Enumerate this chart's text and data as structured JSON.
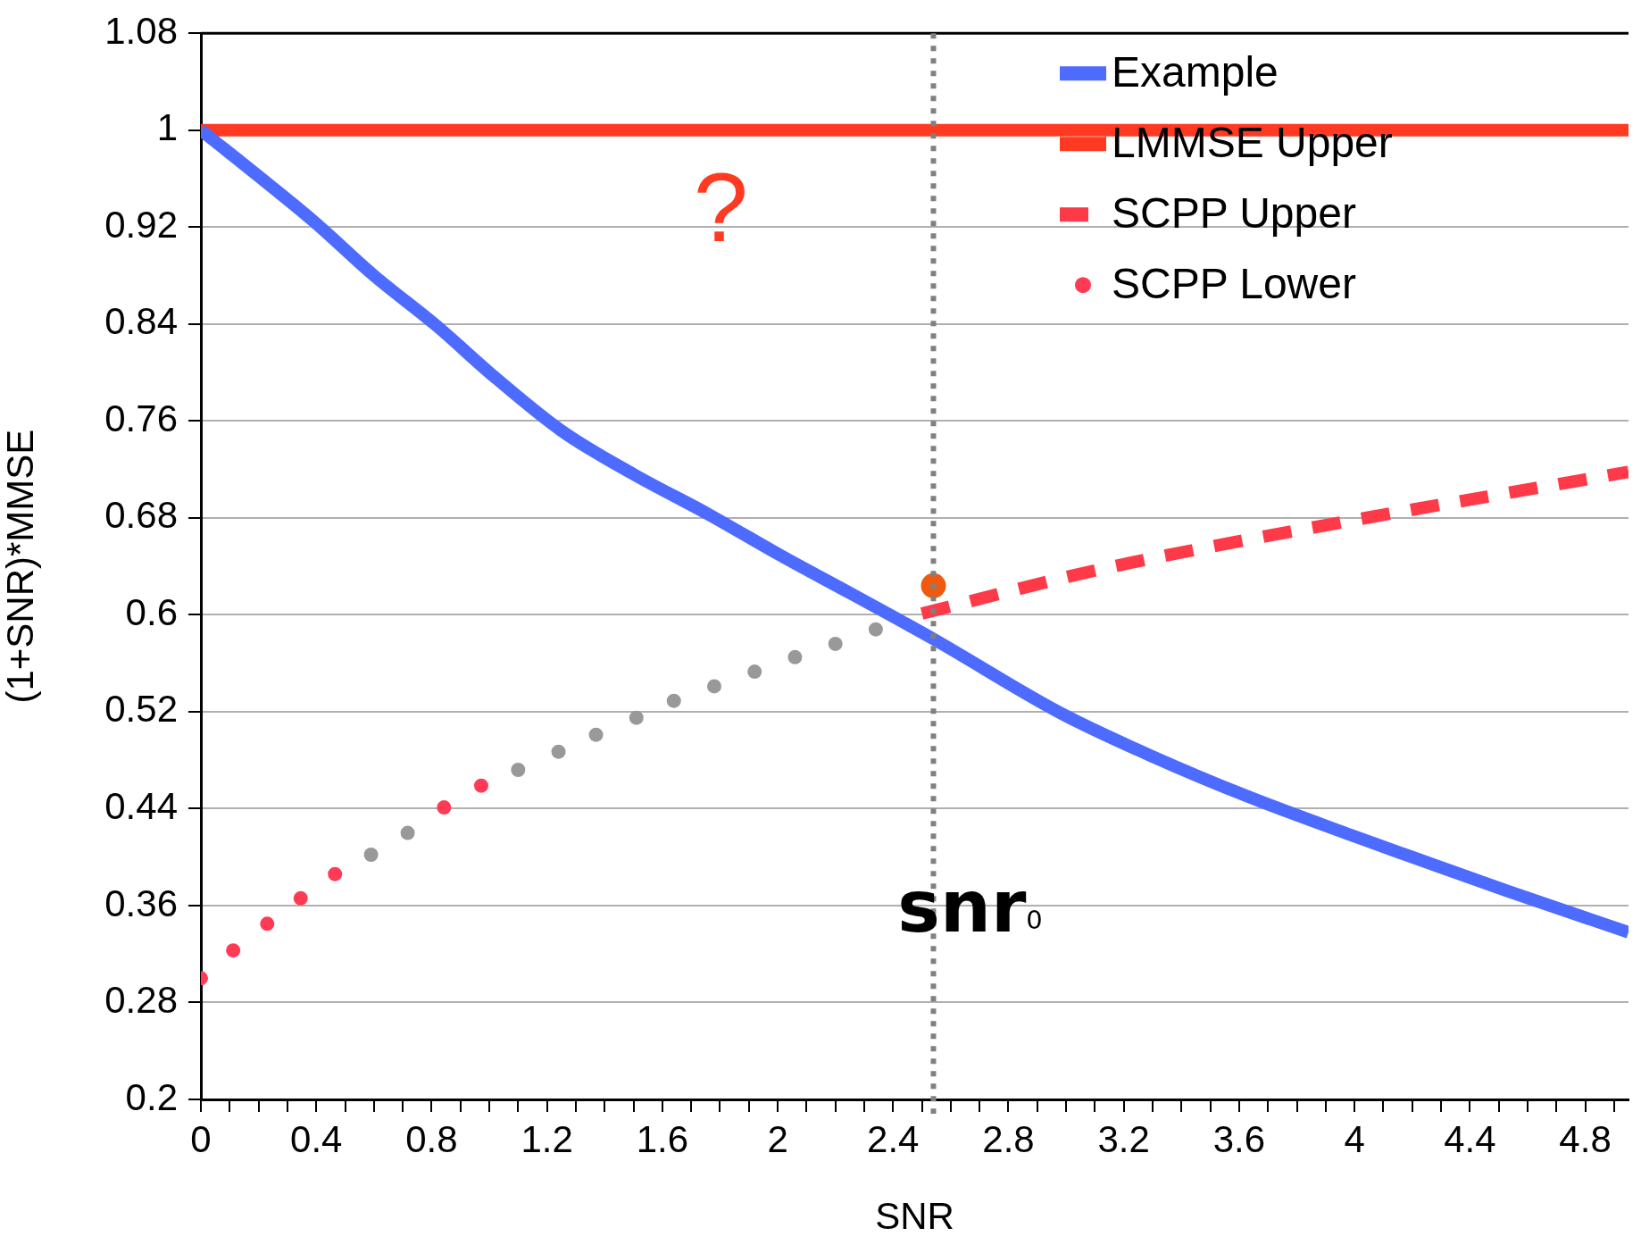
{
  "chart_data": {
    "type": "line",
    "xlabel": "SNR",
    "ylabel": "(1+SNR)*MMSE",
    "xlim": [
      0,
      4.95
    ],
    "ylim": [
      0.2,
      1.08
    ],
    "xticks": [
      0,
      {
        "value": 0.1,
        "label": null
      },
      {
        "value": 0.2,
        "label": null
      },
      {
        "value": 0.3,
        "label": null
      },
      0.4,
      {
        "value": 0.5,
        "label": null
      },
      {
        "value": 0.6,
        "label": null
      },
      {
        "value": 0.7,
        "label": null
      },
      0.8,
      {
        "value": 0.9,
        "label": null
      },
      {
        "value": 1,
        "label": null
      },
      {
        "value": 1.1,
        "label": null
      },
      1.2,
      {
        "value": 1.3,
        "label": null
      },
      {
        "value": 1.4,
        "label": null
      },
      {
        "value": 1.5,
        "label": null
      },
      1.6,
      {
        "value": 1.7,
        "label": null
      },
      {
        "value": 1.8,
        "label": null
      },
      {
        "value": 1.9,
        "label": null
      },
      2,
      {
        "value": 2.1,
        "label": null
      },
      {
        "value": 2.2,
        "label": null
      },
      {
        "value": 2.3,
        "label": null
      },
      2.4,
      {
        "value": 2.5,
        "label": null
      },
      {
        "value": 2.6,
        "label": null
      },
      {
        "value": 2.7,
        "label": null
      },
      2.8,
      {
        "value": 2.9,
        "label": null
      },
      {
        "value": 3,
        "label": null
      },
      {
        "value": 3.1,
        "label": null
      },
      3.2,
      {
        "value": 3.3,
        "label": null
      },
      {
        "value": 3.4,
        "label": null
      },
      {
        "value": 3.5,
        "label": null
      },
      3.6,
      {
        "value": 3.7,
        "label": null
      },
      {
        "value": 3.8,
        "label": null
      },
      {
        "value": 3.9,
        "label": null
      },
      4,
      {
        "value": 4.1,
        "label": null
      },
      {
        "value": 4.2,
        "label": null
      },
      {
        "value": 4.3,
        "label": null
      },
      4.4,
      {
        "value": 4.5,
        "label": null
      },
      {
        "value": 4.6,
        "label": null
      },
      {
        "value": 4.7,
        "label": null
      },
      4.8,
      {
        "value": 4.9,
        "label": null
      }
    ],
    "yticks": [
      0.2,
      0.28,
      0.36,
      0.44,
      0.52,
      0.6,
      0.68,
      0.76,
      0.84,
      0.92,
      1,
      1.08
    ],
    "grid": "y",
    "legend": "top right",
    "series": [
      {
        "name": "Example",
        "color": "#4d6bff",
        "line_style": "solid",
        "x": [
          0,
          0.2,
          0.39,
          0.6,
          0.82,
          1.0,
          1.25,
          1.5,
          1.76,
          2.01,
          2.25,
          2.54,
          2.98,
          3.3,
          3.63,
          3.99,
          4.2,
          4.53,
          4.95
        ],
        "values": [
          1,
          0.962,
          0.925,
          0.88,
          0.838,
          0.8,
          0.752,
          0.716,
          0.683,
          0.649,
          0.618,
          0.58,
          0.519,
          0.483,
          0.45,
          0.418,
          0.4,
          0.372,
          0.338
        ]
      },
      {
        "name": "LMMSE Upper",
        "color": "#ff3a22",
        "line_style": "solid",
        "x": [
          0,
          4.95
        ],
        "values": [
          1,
          1
        ]
      },
      {
        "name": "SCPP Upper",
        "color": "#ff3a48",
        "line_style": "dashed",
        "x": [
          2.5,
          3.09,
          3.63,
          4.95
        ],
        "values": [
          0.601,
          0.636,
          0.662,
          0.718
        ]
      },
      {
        "name": "SCPP Lower",
        "type": "scatter",
        "color": "#ff3a55",
        "colors": [
          "#ff3a55",
          "#ff3a55",
          "#ff3a55",
          "#ff3a55",
          "#ff3a55",
          "#999999",
          "#999999",
          "#ff3a55",
          "#ff3a55",
          "#999999",
          "#999999",
          "#999999",
          "#999999",
          "#999999",
          "#999999",
          "#999999",
          "#999999",
          "#999999",
          "#999999"
        ],
        "x": [
          0,
          0.112,
          0.23,
          0.346,
          0.465,
          0.59,
          0.717,
          0.843,
          0.972,
          1.1,
          1.24,
          1.37,
          1.51,
          1.64,
          1.78,
          1.92,
          2.06,
          2.2,
          2.34
        ],
        "values": [
          0.3,
          0.323,
          0.345,
          0.366,
          0.386,
          0.402,
          0.42,
          0.441,
          0.459,
          0.472,
          0.487,
          0.501,
          0.515,
          0.529,
          0.541,
          0.553,
          0.565,
          0.576,
          0.588
        ]
      },
      {
        "type": "scatter",
        "color": "#f05a10",
        "x": [
          2.54
        ],
        "values": [
          0.624
        ]
      }
    ],
    "ref_lines": [
      {
        "axis": "x",
        "value": 2.54,
        "color": "#808080",
        "line_style": "dotted"
      }
    ],
    "annotations": [
      "?",
      "snr$_{0}$"
    ]
  }
}
